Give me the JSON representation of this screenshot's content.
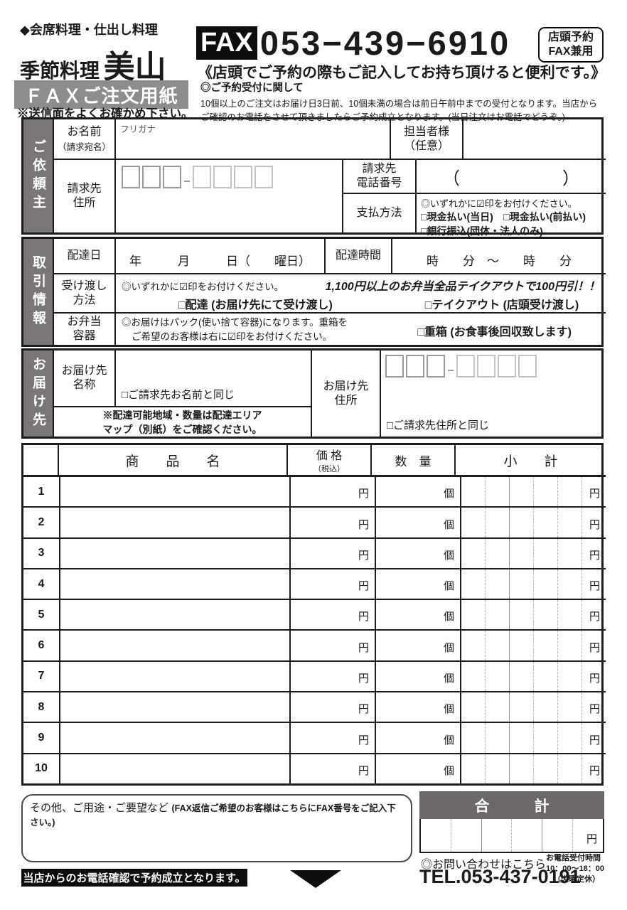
{
  "header": {
    "logo_line1": "◆会席料理・仕出し料理",
    "logo_line2a": "季節料理",
    "logo_line2b": "美山",
    "form_title": "ＦＡＸご注文用紙",
    "check_note": "※送信面をよくお確かめ下さい。",
    "fax_label": "FAX",
    "fax_number": "053−439−6910",
    "badge_line1": "店頭予約",
    "badge_line2": "FAX兼用",
    "subtitle": "《店頭でご予約の際もご記入してお持ち頂けると便利です。》",
    "note_title": "◎ご予約受付に関して",
    "note_line1": "10個以上のご注文はお届け日3日前、10個未満の場合は前日午前中までの受付となります。当店から",
    "note_line2": "ご確認のお電話をさせて頂きましたらご予約成立となります。(当日注文はお電話でどうぞ。)"
  },
  "client": {
    "side_label": "ご依頼主",
    "name_label": "お名前",
    "name_sublabel": "（請求宛名）",
    "furigana": "フリガナ",
    "contact_label": "担当者様",
    "contact_sublabel": "（任意）",
    "address_label1": "請求先",
    "address_label2": "住所",
    "phone_label1": "請求先",
    "phone_label2": "電話番号",
    "phone_value": "（　　　　　　）",
    "payment_label": "支払方法",
    "payment_note": "◎いずれかに☑印をお付けください。",
    "payment_options": [
      "□現金払い(当日)",
      "□現金払い(前払い)",
      "□銀行振込(団体・法人のみ)"
    ]
  },
  "transaction": {
    "side_label": "取引情報",
    "date_label": "配達日",
    "date_format": "年　　　月　　　日（　　曜日）",
    "time_label": "配達時間",
    "time_format": "時　　分　～　　時　　分",
    "handover_label1": "受け渡し",
    "handover_label2": "方法",
    "handover_note": "◎いずれかに☑印をお付けください。",
    "handover_promo": "1,100円以上のお弁当全品テイクアウトで100円引！！",
    "handover_options": [
      "□配達 (お届け先にて受け渡し)",
      "□テイクアウト (店頭受け渡し)"
    ],
    "container_label1": "お弁当",
    "container_label2": "容器",
    "container_note1": "◎お届けはパック(使い捨て容器)になります。重箱を",
    "container_note2": "ご希望のお客様は右に☑印をお付けください。",
    "container_option": "□重箱 (お食事後回収致します)"
  },
  "delivery": {
    "side_label": "お届け先",
    "name_label1": "お届け先",
    "name_label2": "名称",
    "same_name": "□ご請求先お名前と同じ",
    "area_note1": "※配達可能地域・数量は配達エリア",
    "area_note2": "マップ（別紙）をご確認ください。",
    "address_label1": "お届け先",
    "address_label2": "住所",
    "same_address": "□ご請求先住所と同じ"
  },
  "order_table": {
    "header_product": "商　　品　　名",
    "header_price": "価 格",
    "header_price_sub": "（税込）",
    "header_qty": "数　量",
    "header_subtotal": "小　　計",
    "unit_price": "円",
    "unit_qty": "個",
    "unit_subtotal": "円",
    "row_numbers": [
      "1",
      "2",
      "3",
      "4",
      "5",
      "6",
      "7",
      "8",
      "9",
      "10"
    ]
  },
  "footer": {
    "remarks_label": "その他、ご用途・ご要望など",
    "remarks_note": "(FAX返信ご希望のお客様はこちらにFAX番号をご記入下さい。)",
    "total_label": "合　　　計",
    "total_unit": "円",
    "inquiry": "◎お問い合わせはこちら",
    "tel": "TEL.053-437-0191",
    "hours_title": "お電話受付時間",
    "hours": "10：00～18：00",
    "closed": "（火曜定休）",
    "confirm_note": "当店からのお電話確認で予約成立となります。"
  }
}
